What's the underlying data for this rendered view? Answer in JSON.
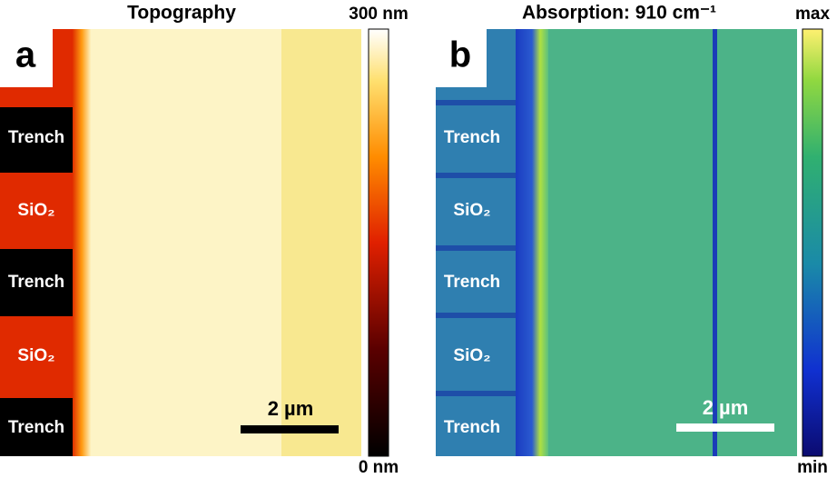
{
  "panels": [
    {
      "letter": "a",
      "title": "Topography",
      "colorbar": {
        "top": "300 nm",
        "bottom": "0 nm"
      },
      "scale_bar": "2 µm",
      "regions": [
        "Trench",
        "SiO₂",
        "Trench",
        "SiO₂",
        "Trench"
      ]
    },
    {
      "letter": "b",
      "title": "Absorption: 910 cm⁻¹",
      "colorbar": {
        "top": "max",
        "bottom": "min"
      },
      "scale_bar": "2 µm",
      "regions": [
        "Trench",
        "SiO₂",
        "Trench",
        "SiO₂",
        "Trench"
      ]
    }
  ]
}
